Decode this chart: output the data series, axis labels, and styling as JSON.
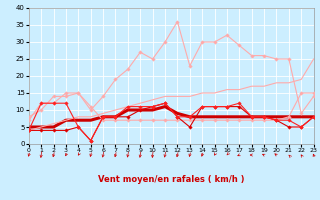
{
  "xlabel": "Vent moyen/en rafales ( km/h )",
  "bg_color": "#cceeff",
  "grid_color": "#ffffff",
  "x_ticks": [
    0,
    1,
    2,
    3,
    4,
    5,
    6,
    7,
    8,
    9,
    10,
    11,
    12,
    13,
    14,
    15,
    16,
    17,
    18,
    19,
    20,
    21,
    22,
    23
  ],
  "ylim": [
    0,
    40
  ],
  "xlim": [
    0,
    23
  ],
  "yticks": [
    0,
    5,
    10,
    15,
    20,
    25,
    30,
    35,
    40
  ],
  "series": [
    {
      "x": [
        0,
        1,
        2,
        3,
        4,
        5,
        6,
        7,
        8,
        9,
        10,
        11,
        12,
        13,
        14,
        15,
        16,
        17,
        18,
        19,
        20,
        21,
        22,
        23
      ],
      "y": [
        7,
        12,
        12,
        15,
        15,
        11,
        7,
        7,
        7,
        7,
        7,
        7,
        7,
        7,
        7,
        7,
        7,
        7,
        7,
        7,
        7,
        8,
        15,
        15
      ],
      "color": "#ffaaaa",
      "marker": "D",
      "markersize": 1.8,
      "linewidth": 0.8,
      "linestyle": "-"
    },
    {
      "x": [
        0,
        1,
        2,
        3,
        4,
        5,
        6,
        7,
        8,
        9,
        10,
        11,
        12,
        13,
        14,
        15,
        16,
        17,
        18,
        19,
        20,
        21,
        22,
        23
      ],
      "y": [
        8,
        10,
        14,
        14,
        15,
        10,
        14,
        19,
        22,
        27,
        25,
        30,
        36,
        23,
        30,
        30,
        32,
        29,
        26,
        26,
        25,
        25,
        9,
        14
      ],
      "color": "#ffaaaa",
      "marker": "D",
      "markersize": 1.8,
      "linewidth": 0.8,
      "linestyle": "-"
    },
    {
      "x": [
        0,
        1,
        2,
        3,
        4,
        5,
        6,
        7,
        8,
        9,
        10,
        11,
        12,
        13,
        14,
        15,
        16,
        17,
        18,
        19,
        20,
        21,
        22,
        23
      ],
      "y": [
        4,
        4,
        4,
        4,
        5,
        1,
        8,
        8,
        8,
        10,
        11,
        12,
        8,
        5,
        11,
        11,
        11,
        11,
        8,
        8,
        7,
        5,
        5,
        8
      ],
      "color": "#dd0000",
      "marker": "D",
      "markersize": 1.8,
      "linewidth": 0.8,
      "linestyle": "-"
    },
    {
      "x": [
        0,
        1,
        2,
        3,
        4,
        5,
        6,
        7,
        8,
        9,
        10,
        11,
        12,
        13,
        14,
        15,
        16,
        17,
        18,
        19,
        20,
        21,
        22,
        23
      ],
      "y": [
        4,
        12,
        12,
        12,
        5,
        1,
        8,
        8,
        11,
        11,
        11,
        12,
        8,
        8,
        11,
        11,
        11,
        12,
        8,
        8,
        7,
        7,
        5,
        8
      ],
      "color": "#ff2222",
      "marker": "D",
      "markersize": 1.8,
      "linewidth": 0.8,
      "linestyle": "-"
    },
    {
      "x": [
        0,
        1,
        2,
        3,
        4,
        5,
        6,
        7,
        8,
        9,
        10,
        11,
        12,
        13,
        14,
        15,
        16,
        17,
        18,
        19,
        20,
        21,
        22,
        23
      ],
      "y": [
        5,
        5,
        5,
        7,
        7,
        7,
        8,
        8,
        10,
        10,
        10,
        11,
        9,
        8,
        8,
        8,
        8,
        8,
        8,
        8,
        8,
        8,
        8,
        8
      ],
      "color": "#cc0000",
      "marker": null,
      "markersize": 0,
      "linewidth": 2.2,
      "linestyle": "-"
    },
    {
      "x": [
        0,
        1,
        2,
        3,
        4,
        5,
        6,
        7,
        8,
        9,
        10,
        11,
        12,
        13,
        14,
        15,
        16,
        17,
        18,
        19,
        20,
        21,
        22,
        23
      ],
      "y": [
        4,
        5,
        6,
        7,
        8,
        8,
        9,
        10,
        11,
        12,
        13,
        14,
        14,
        14,
        15,
        15,
        16,
        16,
        17,
        17,
        18,
        18,
        19,
        25
      ],
      "color": "#ffaaaa",
      "marker": null,
      "markersize": 0,
      "linewidth": 0.8,
      "linestyle": "-"
    }
  ],
  "arrow_angles_deg": [
    225,
    200,
    215,
    230,
    240,
    220,
    210,
    215,
    210,
    205,
    200,
    210,
    215,
    220,
    225,
    240,
    250,
    260,
    270,
    280,
    285,
    290,
    300,
    310
  ],
  "arrow_color": "#cc0000"
}
